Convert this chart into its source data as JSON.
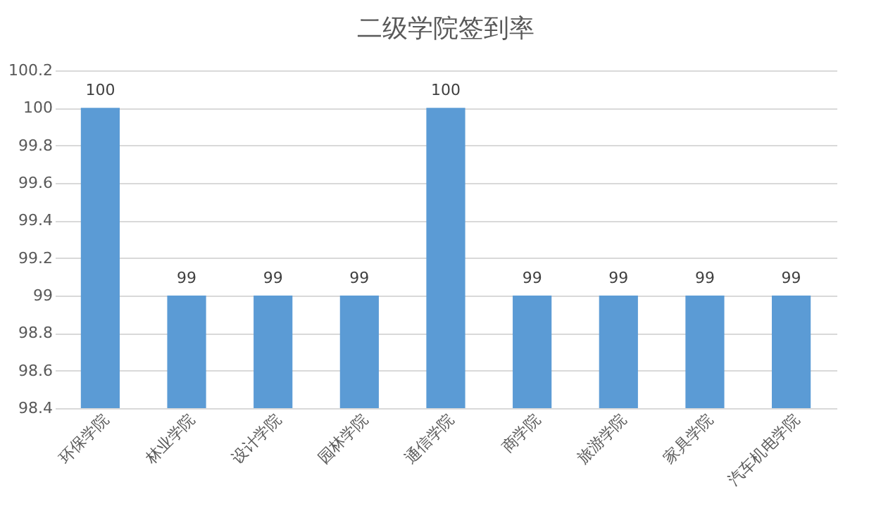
{
  "chart_data": {
    "type": "bar",
    "title": "二级学院签到率",
    "categories": [
      "环保学院",
      "林业学院",
      "设计学院",
      "园林学院",
      "通信学院",
      "商学院",
      "旅游学院",
      "家具学院",
      "汽车机电学院"
    ],
    "values": [
      100,
      99,
      99,
      99,
      100,
      99,
      99,
      99,
      99
    ],
    "color": "#5b9bd5",
    "ylim": [
      98.4,
      100.2
    ],
    "yticks": [
      98.4,
      98.6,
      98.8,
      99,
      99.2,
      99.4,
      99.6,
      99.8,
      100,
      100.2
    ],
    "grid": "y",
    "data_labels": true
  }
}
